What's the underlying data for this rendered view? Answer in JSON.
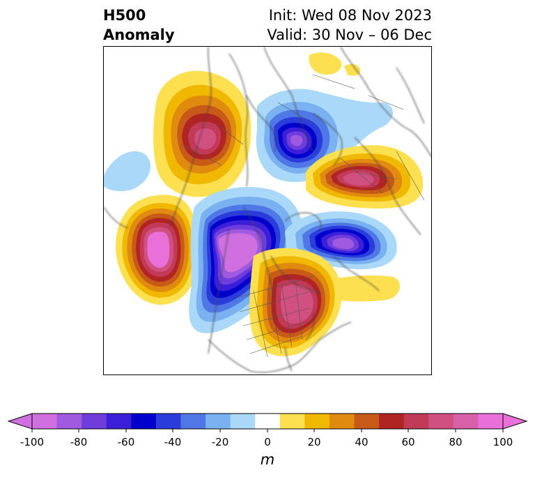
{
  "title": {
    "left_line1": "H500",
    "left_line2": "Anomaly",
    "right_line1": "Init: Wed 08 Nov 2023",
    "right_line2": "Valid: 30 Nov – 06 Dec"
  },
  "colorbar": {
    "unit": "m",
    "ticks": [
      "-100",
      "-80",
      "-60",
      "-40",
      "-20",
      "0",
      "20",
      "40",
      "60",
      "80",
      "100"
    ],
    "colors": [
      "#d070e0",
      "#9f5adf",
      "#6e3ddc",
      "#3b1fd8",
      "#0000cd",
      "#2a3ddb",
      "#4f78e6",
      "#7ab1f0",
      "#aad8f8",
      "#ffffff",
      "#fde050",
      "#f0b800",
      "#e08a10",
      "#c85a18",
      "#b02424",
      "#c13a58",
      "#d05080",
      "#d860a8",
      "#e870d8"
    ],
    "extend_low_color": "#d070e0",
    "extend_high_color": "#e870d8"
  },
  "anomalies": [
    {
      "name": "alaska-ridge",
      "sign": "positive",
      "peak_m": 80
    },
    {
      "name": "pacific-trough",
      "sign": "negative",
      "peak_m": -100
    },
    {
      "name": "western-canada-trough",
      "sign": "negative",
      "peak_m": -100
    },
    {
      "name": "eastern-canada-ridge",
      "sign": "positive",
      "peak_m": 70
    },
    {
      "name": "north-atlantic-trough",
      "sign": "negative",
      "peak_m": -80
    },
    {
      "name": "arctic-trough",
      "sign": "negative",
      "peak_m": -90
    },
    {
      "name": "siberia-ridge",
      "sign": "positive",
      "peak_m": 70
    }
  ]
}
